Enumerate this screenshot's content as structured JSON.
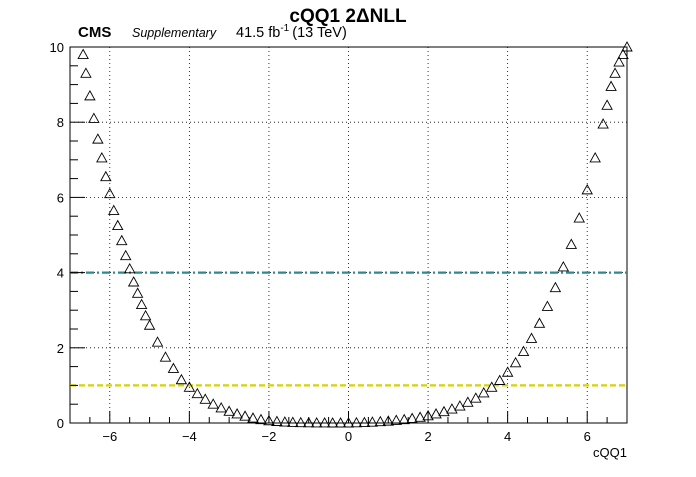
{
  "header": {
    "experiment": "CMS",
    "tag": "Supplementary",
    "lumi": "41.5 fb",
    "lumi_exp": "-1",
    "energy": "(13 TeV)"
  },
  "chart_data": {
    "type": "scatter",
    "title": "cQQ1 2ΔNLL",
    "xlabel": "cQQ1",
    "ylabel": "",
    "xlim": [
      -7,
      7
    ],
    "ylim": [
      0,
      10
    ],
    "xticks": [
      -6,
      -4,
      -2,
      0,
      2,
      4,
      6
    ],
    "yticks": [
      0,
      2,
      4,
      6,
      8,
      10
    ],
    "grid": true,
    "marker": "open-triangle",
    "series": [
      {
        "x": [
          -6.67,
          -6.6,
          -6.5,
          -6.4,
          -6.3,
          -6.2,
          -6.1,
          -6.0,
          -5.9,
          -5.8,
          -5.7,
          -5.6,
          -5.5,
          -5.4,
          -5.3,
          -5.2,
          -5.1,
          -5.0,
          -4.8,
          -4.6,
          -4.4,
          -4.2,
          -4.0,
          -3.8,
          -3.6,
          -3.4,
          -3.2,
          -3.0,
          -2.8,
          -2.6,
          -2.4,
          -2.2,
          -2.0,
          -1.8,
          -1.6,
          -1.4,
          -1.2,
          -1.0,
          -0.8,
          -0.6,
          -0.4,
          -0.2,
          0.0,
          0.2,
          0.4,
          0.6,
          0.8,
          1.0,
          1.2,
          1.4,
          1.6,
          1.8,
          2.0,
          2.2,
          2.4,
          2.6,
          2.8,
          3.0,
          3.2,
          3.4,
          3.6,
          3.8,
          4.0,
          4.2,
          4.4,
          4.6,
          4.8,
          5.0,
          5.2,
          5.4,
          5.6,
          5.8,
          6.0,
          6.2,
          6.4,
          6.5,
          6.6,
          6.7,
          6.8,
          6.9,
          7.0
        ],
        "y": [
          9.8,
          9.3,
          8.7,
          8.1,
          7.55,
          7.05,
          6.55,
          6.1,
          5.65,
          5.25,
          4.85,
          4.45,
          4.1,
          3.75,
          3.45,
          3.15,
          2.85,
          2.6,
          2.15,
          1.75,
          1.45,
          1.15,
          0.95,
          0.78,
          0.63,
          0.5,
          0.4,
          0.31,
          0.24,
          0.18,
          0.13,
          0.09,
          0.06,
          0.04,
          0.025,
          0.015,
          0.008,
          0.004,
          0.002,
          0.001,
          0.0,
          0.0,
          0.0,
          0.005,
          0.012,
          0.022,
          0.035,
          0.05,
          0.07,
          0.09,
          0.12,
          0.15,
          0.19,
          0.24,
          0.3,
          0.37,
          0.45,
          0.55,
          0.66,
          0.8,
          0.95,
          1.13,
          1.35,
          1.6,
          1.9,
          2.25,
          2.65,
          3.1,
          3.6,
          4.15,
          4.75,
          5.45,
          6.2,
          7.05,
          7.95,
          8.45,
          8.95,
          9.3,
          9.6,
          9.8,
          10.0
        ]
      }
    ],
    "reference_lines": [
      {
        "y": 1,
        "style": "dashed",
        "color": "#d4d400"
      },
      {
        "y": 4,
        "style": "dash-dot",
        "color": "#2b8a8a"
      }
    ]
  }
}
